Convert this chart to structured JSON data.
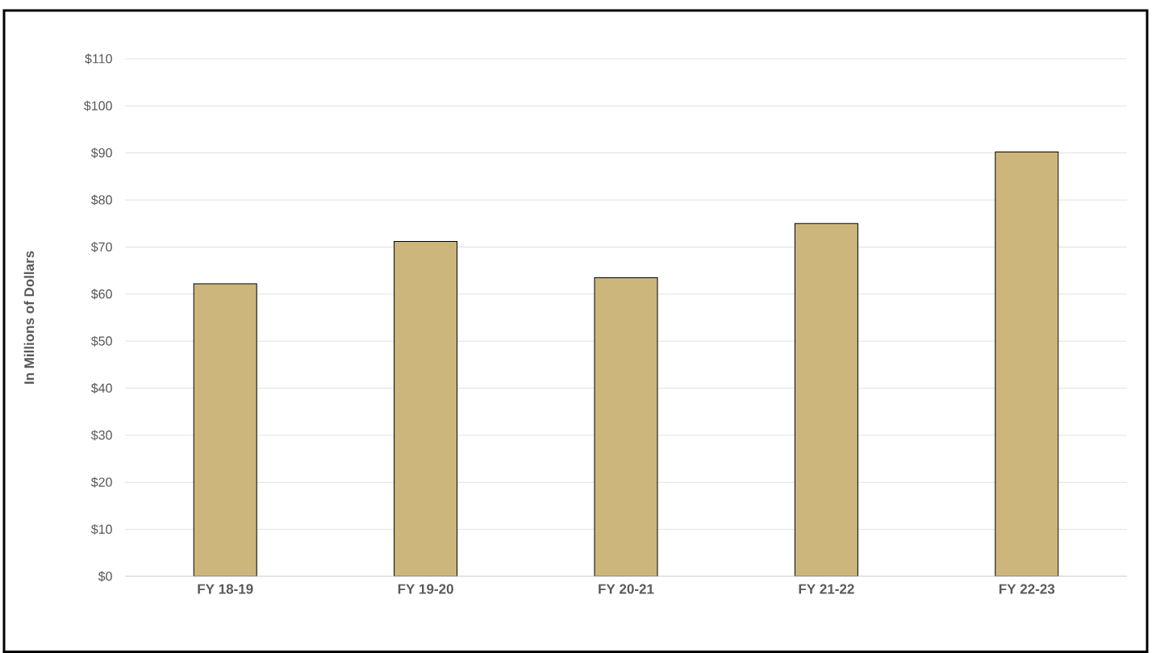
{
  "chart_data": {
    "type": "bar",
    "ylabel": "In Millions of Dollars",
    "categories": [
      "FY 18-19",
      "FY 19-20",
      "FY 20-21",
      "FY 21-22",
      "FY 22-23"
    ],
    "values": [
      62.2,
      71.2,
      63.5,
      75.0,
      90.2
    ],
    "color": "#cdb67c",
    "ylim": [
      0,
      110
    ],
    "yticks": [
      {
        "value": 0,
        "label": "$0"
      },
      {
        "value": 10,
        "label": "$10"
      },
      {
        "value": 20,
        "label": "$20"
      },
      {
        "value": 30,
        "label": "$30"
      },
      {
        "value": 40,
        "label": "$40"
      },
      {
        "value": 50,
        "label": "$50"
      },
      {
        "value": 60,
        "label": "$60"
      },
      {
        "value": 70,
        "label": "$70"
      },
      {
        "value": 80,
        "label": "$80"
      },
      {
        "value": 90,
        "label": "$90"
      },
      {
        "value": 100,
        "label": "$100"
      },
      {
        "value": 110,
        "label": "$110"
      }
    ],
    "grid": "y"
  }
}
